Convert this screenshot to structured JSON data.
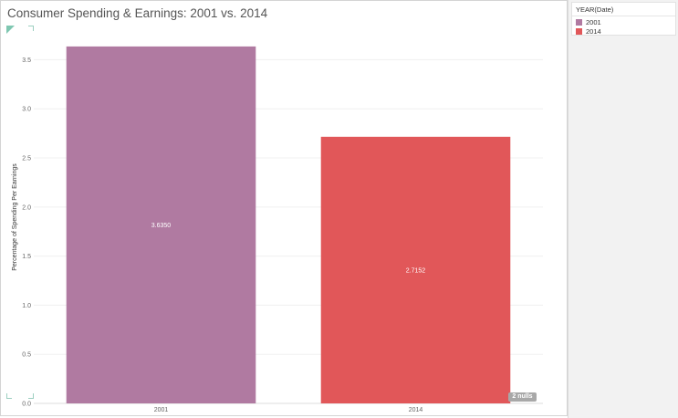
{
  "chart_data": {
    "type": "bar",
    "title": "Consumer Spending & Earnings: 2001 vs. 2014",
    "categories": [
      "2001",
      "2014"
    ],
    "values": [
      3.635,
      2.7152
    ],
    "value_labels": [
      "3.6350",
      "2.7152"
    ],
    "colors": [
      "#b07aa1",
      "#e15759"
    ],
    "xlabel": "",
    "ylabel": "Percentage of Spending Per Earnings",
    "ylim": [
      0,
      3.82
    ],
    "yticks": [
      0.0,
      0.5,
      1.0,
      1.5,
      2.0,
      2.5,
      3.0,
      3.5
    ],
    "ytick_labels": [
      "0.0",
      "0.5",
      "1.0",
      "1.5",
      "2.0",
      "2.5",
      "3.0",
      "3.5"
    ],
    "grid": true,
    "nulls_indicator": "2 nulls"
  },
  "legend": {
    "title": "YEAR(Date)",
    "items": [
      {
        "label": "2001",
        "color": "#b07aa1"
      },
      {
        "label": "2014",
        "color": "#e15759"
      }
    ]
  }
}
